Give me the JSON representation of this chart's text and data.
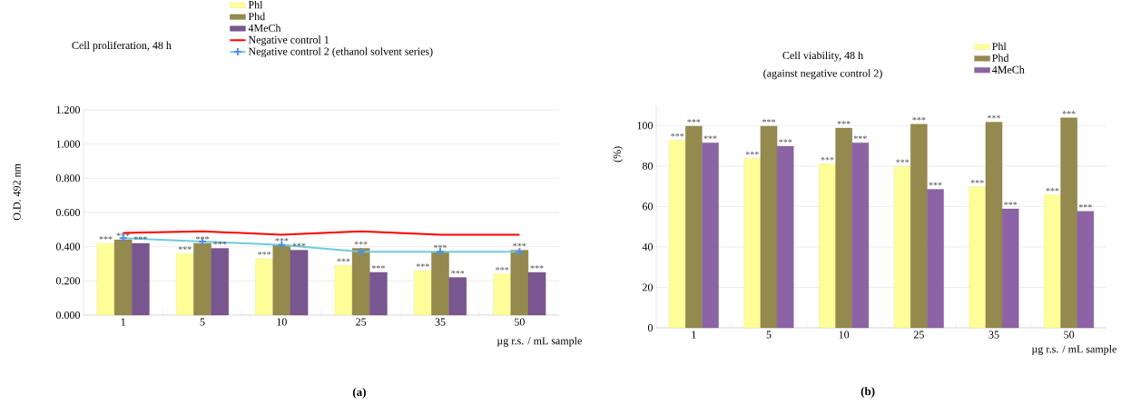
{
  "chart_data": [
    {
      "type": "bar",
      "title": "Cell proliferation, 48 h",
      "ylabel": "O.D. 492 nm",
      "xlabel": "µg r.s. / mL sample",
      "categories": [
        "1",
        "5",
        "10",
        "25",
        "35",
        "50"
      ],
      "series": [
        {
          "name": "Phl",
          "color": "#ffff99",
          "values": [
            0.42,
            0.36,
            0.33,
            0.29,
            0.26,
            0.24
          ],
          "value_labels": [
            "***",
            "***",
            "***",
            "***",
            "***",
            "***"
          ]
        },
        {
          "name": "Phd",
          "color": "#958a4d",
          "values": [
            0.44,
            0.42,
            0.41,
            0.39,
            0.37,
            0.38
          ],
          "value_labels": [
            "***",
            "***",
            "***",
            "***",
            "***",
            "***"
          ]
        },
        {
          "name": "4MeCh",
          "color": "#7a5690",
          "values": [
            0.42,
            0.39,
            0.38,
            0.25,
            0.22,
            0.25
          ],
          "value_labels": [
            "***",
            "***",
            "***",
            "***",
            "***",
            "***"
          ]
        },
        {
          "name": "Negative control 1",
          "type": "line",
          "color": "#ff0000",
          "values": [
            0.48,
            0.49,
            0.47,
            0.49,
            0.47,
            0.47
          ]
        },
        {
          "name": "Negative control 2 (ethanol solvent series)",
          "type": "line",
          "color": "#6ecbdc",
          "marker": "cross",
          "values": [
            0.45,
            0.43,
            0.41,
            0.37,
            0.37,
            0.37
          ]
        }
      ],
      "ylim": [
        0,
        1.2
      ],
      "yticks": [
        {
          "value": 0,
          "label": "0.000"
        },
        {
          "value": 0.2,
          "label": "0.200"
        },
        {
          "value": 0.4,
          "label": "0.400"
        },
        {
          "value": 0.6,
          "label": "0.600"
        },
        {
          "value": 0.8,
          "label": "0.800"
        },
        {
          "value": 1.0,
          "label": "1.000"
        },
        {
          "value": 1.2,
          "label": "1.200"
        }
      ],
      "grid": "y",
      "legend": "top",
      "annotations": [
        "(a)"
      ]
    },
    {
      "type": "bar",
      "title": "Cell viability, 48 h",
      "subtitle": "(against negative control 2)",
      "ylabel": "(%)",
      "xlabel": "µg r.s. / mL sample",
      "categories": [
        "1",
        "5",
        "10",
        "25",
        "35",
        "50"
      ],
      "series": [
        {
          "name": "Phl",
          "color": "#ffff99",
          "values": [
            92.7,
            83.7,
            81.0,
            79.8,
            69.7,
            65.7
          ],
          "value_labels": [
            "***",
            "***",
            "***",
            "***",
            "***",
            "***"
          ]
        },
        {
          "name": "Phd",
          "color": "#958a4d",
          "values": [
            99.7,
            99.7,
            98.8,
            100.7,
            101.7,
            103.8
          ],
          "value_labels": [
            "***",
            "***",
            "***",
            "***",
            "***",
            "***"
          ]
        },
        {
          "name": "4MeCh",
          "color": "#8c64a6",
          "values": [
            91.5,
            89.8,
            91.5,
            68.5,
            58.8,
            57.6
          ],
          "value_labels": [
            "***",
            "***",
            "***",
            "***",
            "***",
            "***"
          ]
        }
      ],
      "ylim": [
        0,
        110
      ],
      "yticks": [
        0,
        20,
        40,
        60,
        80,
        100
      ],
      "grid": "y",
      "legend": "top right",
      "annotations": [
        "(b)"
      ]
    }
  ]
}
